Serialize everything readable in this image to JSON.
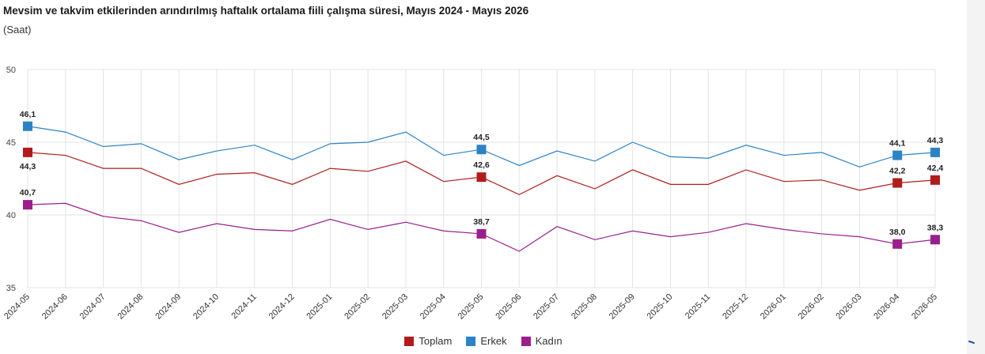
{
  "title": "Mevsim ve takvim etkilerinden arındırılmış haftalık ortalama fiili çalışma süresi, Mayıs 2024 - Mayıs 2026",
  "subtitle": "(Saat)",
  "chart_data": {
    "type": "line",
    "x": [
      "2024-05",
      "2024-06",
      "2024-07",
      "2024-08",
      "2024-09",
      "2024-10",
      "2024-11",
      "2024-12",
      "2025-01",
      "2025-02",
      "2025-03",
      "2025-04",
      "2025-05",
      "2025-06",
      "2025-07",
      "2025-08",
      "2025-09",
      "2025-10",
      "2025-11",
      "2025-12",
      "2026-01",
      "2026-02",
      "2026-03",
      "2026-04",
      "2026-05"
    ],
    "ylim": [
      35,
      50
    ],
    "yticks": [
      35,
      40,
      45,
      50
    ],
    "grid": true,
    "legend_position": "bottom-center",
    "series": [
      {
        "name": "Toplam",
        "color": "#b01c1c",
        "values": [
          44.3,
          44.1,
          43.2,
          43.2,
          42.1,
          42.8,
          42.9,
          42.1,
          43.2,
          43.0,
          43.7,
          42.3,
          42.6,
          41.4,
          42.7,
          41.8,
          43.1,
          42.1,
          42.1,
          43.1,
          42.3,
          42.4,
          41.7,
          42.2,
          42.4
        ],
        "labeled": [
          {
            "index": 0,
            "text": "44,3",
            "pos": "below"
          },
          {
            "index": 12,
            "text": "42,6",
            "pos": "above"
          },
          {
            "index": 23,
            "text": "42,2",
            "pos": "above"
          },
          {
            "index": 24,
            "text": "42,4",
            "pos": "above"
          }
        ]
      },
      {
        "name": "Erkek",
        "color": "#2b83c6",
        "values": [
          46.1,
          45.7,
          44.7,
          44.9,
          43.8,
          44.4,
          44.8,
          43.8,
          44.9,
          45.0,
          45.7,
          44.1,
          44.5,
          43.4,
          44.4,
          43.7,
          45.0,
          44.0,
          43.9,
          44.8,
          44.1,
          44.3,
          43.3,
          44.1,
          44.3
        ],
        "labeled": [
          {
            "index": 0,
            "text": "46,1",
            "pos": "above"
          },
          {
            "index": 12,
            "text": "44,5",
            "pos": "above"
          },
          {
            "index": 23,
            "text": "44,1",
            "pos": "above"
          },
          {
            "index": 24,
            "text": "44,3",
            "pos": "above"
          }
        ]
      },
      {
        "name": "Kadın",
        "color": "#9b1e8c",
        "values": [
          40.7,
          40.8,
          39.9,
          39.6,
          38.8,
          39.4,
          39.0,
          38.9,
          39.7,
          39.0,
          39.5,
          38.9,
          38.7,
          37.5,
          39.2,
          38.3,
          38.9,
          38.5,
          38.8,
          39.4,
          39.0,
          38.7,
          38.5,
          38.0,
          38.3
        ],
        "labeled": [
          {
            "index": 0,
            "text": "40,7",
            "pos": "above"
          },
          {
            "index": 12,
            "text": "38,7",
            "pos": "above"
          },
          {
            "index": 23,
            "text": "38,0",
            "pos": "above"
          },
          {
            "index": 24,
            "text": "38,3",
            "pos": "above"
          }
        ]
      }
    ]
  }
}
